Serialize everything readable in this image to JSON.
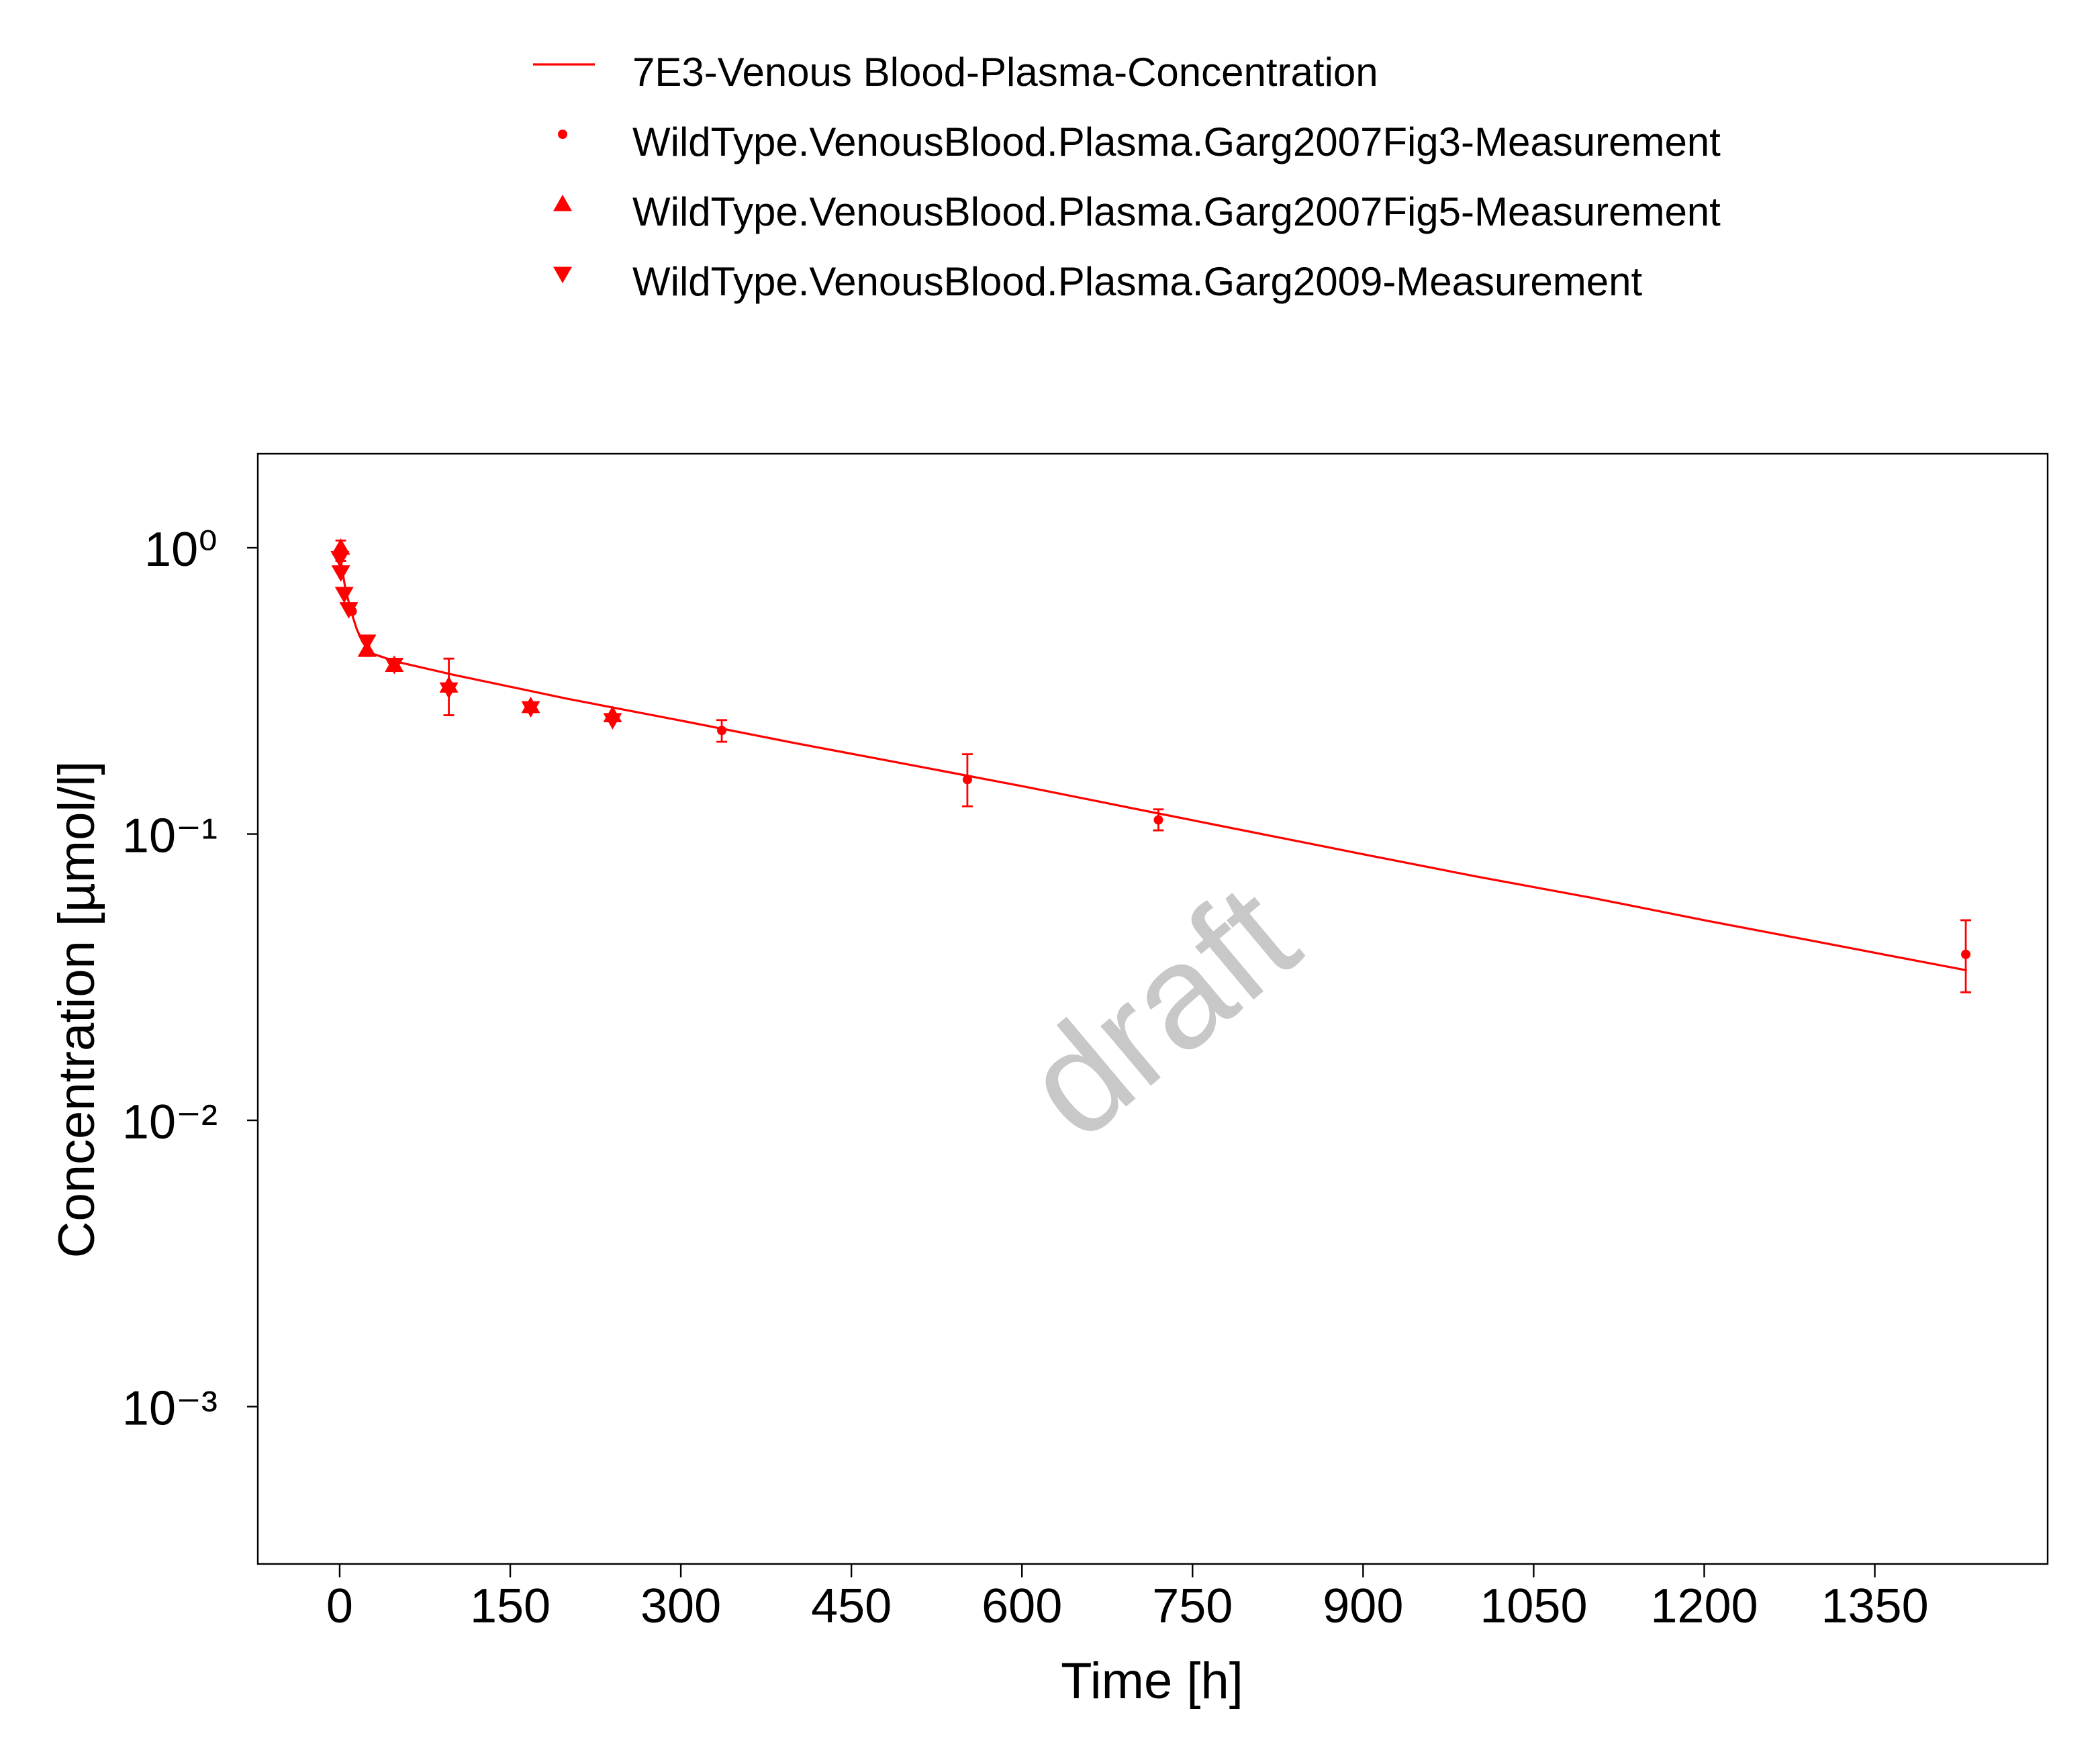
{
  "chart_data": {
    "type": "line",
    "x_label": "Time [h]",
    "y_label": "Concentration [µmol/l]",
    "watermark": "draft",
    "legend": "top",
    "y_scale": "log",
    "xlim": [
      -72,
      1502
    ],
    "xticks": [
      0,
      150,
      300,
      450,
      600,
      750,
      900,
      1050,
      1200,
      1350
    ],
    "ylim": [
      0.000282,
      2.13
    ],
    "yticks": [
      {
        "value": 0.001,
        "label": "10⁻³"
      },
      {
        "value": 0.01,
        "label": "10⁻²"
      },
      {
        "value": 0.1,
        "label": "10⁻¹"
      },
      {
        "value": 1,
        "label": "10⁰"
      }
    ],
    "series": [
      {
        "name": "7E3-Venous Blood-Plasma-Concentration",
        "color": "#ff0000",
        "marker": "line",
        "x": [
          0,
          2,
          5,
          10,
          15,
          20,
          25,
          30,
          50,
          100,
          200,
          300,
          400,
          500,
          600,
          720,
          800,
          900,
          1000,
          1100,
          1200,
          1300,
          1431
        ],
        "values": [
          0.97,
          0.85,
          0.72,
          0.6,
          0.52,
          0.47,
          0.44,
          0.425,
          0.4,
          0.36,
          0.297,
          0.249,
          0.208,
          0.175,
          0.147,
          0.118,
          0.102,
          0.085,
          0.071,
          0.06,
          0.05,
          0.042,
          0.0334
        ]
      },
      {
        "name": "WildType.VenousBlood.Plasma.Garg2007Fig3-Measurement",
        "color": "#ff0000",
        "marker": "circle",
        "x": [
          1,
          11,
          336,
          552,
          720,
          1430
        ],
        "values": [
          0.97,
          0.6,
          0.23,
          0.155,
          0.112,
          0.038
        ],
        "lower": [
          0.9,
          null,
          0.21,
          0.125,
          0.103,
          0.028
        ],
        "upper": [
          1.06,
          null,
          0.25,
          0.19,
          0.122,
          0.05
        ]
      },
      {
        "name": "WildType.VenousBlood.Plasma.Garg2007Fig5-Measurement",
        "color": "#ff0000",
        "marker": "triangle-up",
        "x": [
          1,
          24,
          48,
          96,
          168,
          240
        ],
        "values": [
          1.0,
          0.44,
          0.39,
          0.33,
          0.28,
          0.26
        ],
        "lower": [
          null,
          null,
          null,
          0.26,
          null,
          null
        ],
        "upper": [
          null,
          null,
          null,
          0.41,
          null,
          null
        ]
      },
      {
        "name": "WildType.VenousBlood.Plasma.Garg2009-Measurement",
        "color": "#ff0000",
        "marker": "triangle-down",
        "x": [
          0.25,
          1,
          4,
          8,
          24,
          48,
          96,
          168,
          240
        ],
        "values": [
          0.92,
          0.82,
          0.69,
          0.61,
          0.47,
          0.39,
          0.32,
          0.275,
          0.25
        ]
      }
    ]
  }
}
